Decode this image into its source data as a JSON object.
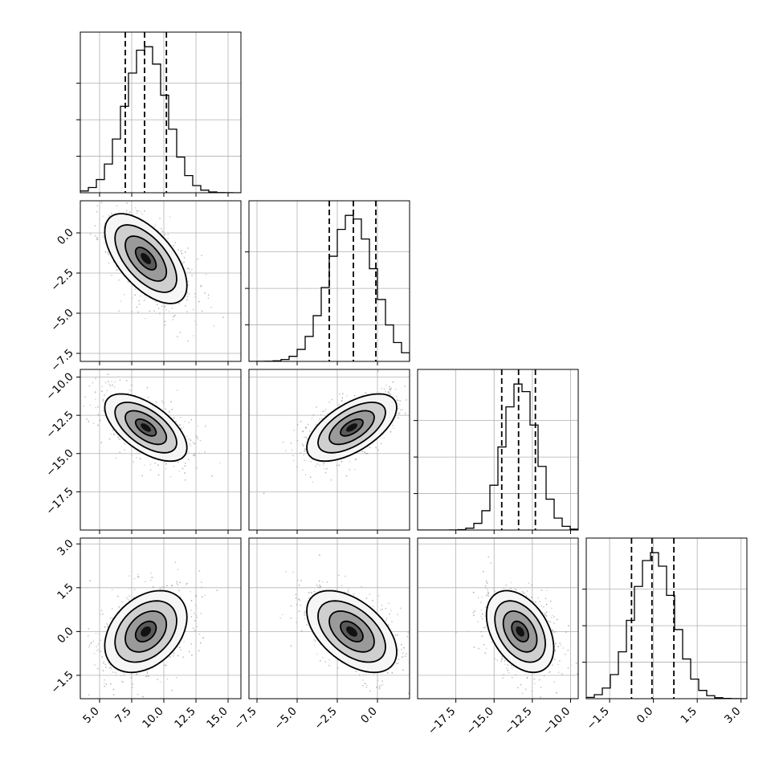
{
  "chart_data": {
    "type": "corner",
    "parameters": [
      {
        "mean": 8.6,
        "std": 1.6,
        "range": [
          3.5,
          16.0
        ],
        "ticks": [
          5.0,
          7.5,
          10.0,
          12.5,
          15.0
        ],
        "tick_labels": [
          "5.0",
          "7.5",
          "10.0",
          "12.5",
          "15.0"
        ],
        "quantiles": [
          7.0,
          8.5,
          10.2
        ]
      },
      {
        "mean": -1.6,
        "std": 1.4,
        "range": [
          -8.0,
          2.0
        ],
        "ticks": [
          -7.5,
          -5.0,
          -2.5,
          0.0
        ],
        "tick_labels": [
          "−7.5",
          "−5.0",
          "−2.5",
          "0.0"
        ],
        "quantiles": [
          -3.0,
          -1.5,
          -0.1
        ]
      },
      {
        "mean": -13.3,
        "std": 1.1,
        "range": [
          -20.0,
          -9.5
        ],
        "ticks": [
          -17.5,
          -15.0,
          -12.5,
          -10.0
        ],
        "tick_labels": [
          "−17.5",
          "−15.0",
          "−12.5",
          "−10.0"
        ],
        "quantiles": [
          -14.5,
          -13.4,
          -12.3
        ]
      },
      {
        "mean": 0.0,
        "std": 0.7,
        "range": [
          -2.3,
          3.2
        ],
        "ticks": [
          -1.5,
          0.0,
          1.5,
          3.0
        ],
        "tick_labels": [
          "−1.5",
          "0.0",
          "1.5",
          "3.0"
        ],
        "quantiles": [
          -0.75,
          -0.05,
          0.7
        ]
      }
    ],
    "correlations": [
      {
        "i": 1,
        "j": 0,
        "rho": -0.6
      },
      {
        "i": 2,
        "j": 0,
        "rho": -0.6
      },
      {
        "i": 2,
        "j": 1,
        "rho": 0.6
      },
      {
        "i": 3,
        "j": 0,
        "rho": 0.35
      },
      {
        "i": 3,
        "j": 1,
        "rho": -0.5
      },
      {
        "i": 3,
        "j": 2,
        "rho": -0.4
      }
    ],
    "histogram_bins": 20,
    "contour_levels_sigma": [
      0.5,
      1.0,
      1.5,
      2.0
    ],
    "grid": true,
    "colors": {
      "line": "#000000",
      "points": "#9a9a9a",
      "grid": "#b0b0b0"
    }
  }
}
